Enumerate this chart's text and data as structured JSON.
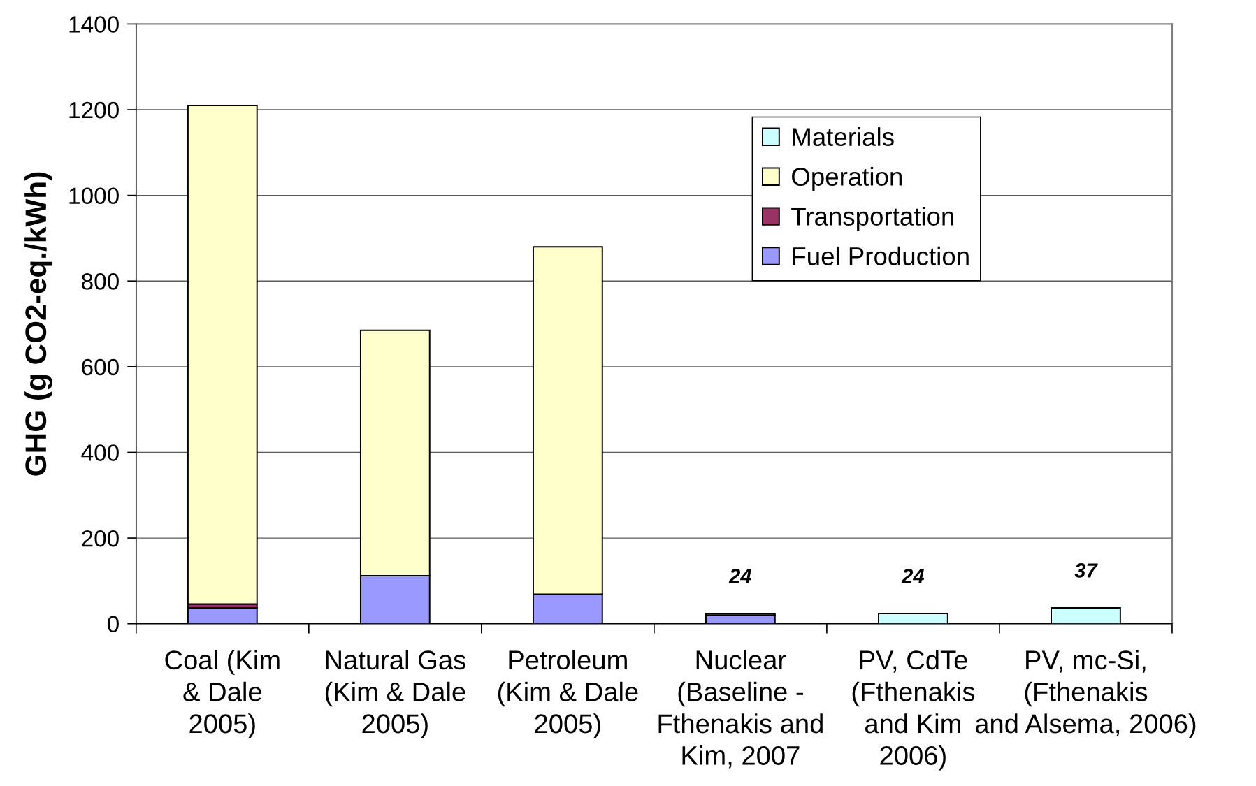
{
  "chart_data": {
    "type": "bar",
    "stacked": true,
    "categories": [
      "Coal (Kim\n& Dale\n2005)",
      "Natural Gas\n(Kim & Dale\n2005)",
      "Petroleum\n(Kim & Dale\n2005)",
      "Nuclear\n(Baseline -\nFthenakis and\nKim, 2007",
      "PV, CdTe\n(Fthenakis\nand Kim\n2006)",
      "PV, mc-Si,\n(Fthenakis\nand Alsema, 2006)"
    ],
    "series": [
      {
        "name": "Fuel Production",
        "color": "#9999ff",
        "values": [
          37,
          112,
          69,
          20,
          null,
          null
        ]
      },
      {
        "name": "Transportation",
        "color": "#993366",
        "values": [
          9,
          null,
          null,
          4,
          null,
          null
        ]
      },
      {
        "name": "Operation",
        "color": "#ffffcc",
        "values": [
          1164,
          573,
          811,
          null,
          null,
          null
        ]
      },
      {
        "name": "Materials",
        "color": "#ccffff",
        "values": [
          null,
          null,
          null,
          null,
          24,
          37
        ]
      }
    ],
    "ylabel": "GHG (g CO2-eq./kWh)",
    "ylim": [
      0,
      1400
    ],
    "yticks": [
      0,
      200,
      400,
      600,
      800,
      1000,
      1200,
      1400
    ],
    "grid": "y",
    "legend": "top right",
    "totals": [
      null,
      null,
      null,
      "24",
      "24",
      "37"
    ]
  }
}
